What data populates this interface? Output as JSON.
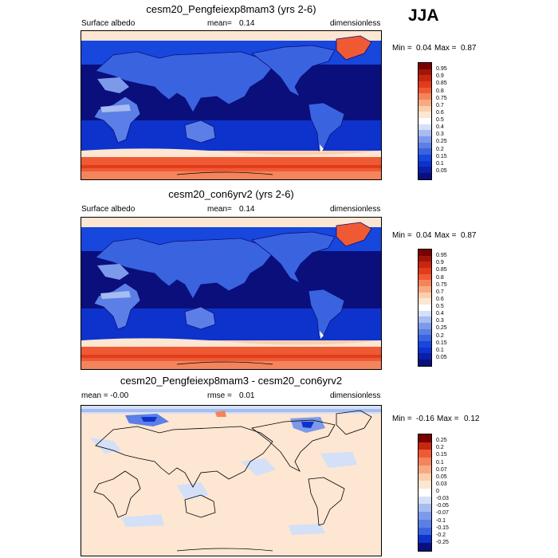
{
  "season": "JJA",
  "colors": {
    "seq": [
      "#0a0f7c",
      "#0a1faa",
      "#0d33cc",
      "#1747dc",
      "#3a63e0",
      "#5b7fe6",
      "#7d9aea",
      "#a7bcf0",
      "#d3e0f8",
      "#ffffff",
      "#fde6d2",
      "#fbcfae",
      "#f7aa82",
      "#f3845c",
      "#ef5a35",
      "#e13c1b",
      "#c72610",
      "#a0150a",
      "#7a0000"
    ],
    "diff": [
      "#0a0f7c",
      "#0d33cc",
      "#3a63e0",
      "#5b7fe6",
      "#7d9aea",
      "#a7bcf0",
      "#d3e0f8",
      "#ffffff",
      "#fde6d2",
      "#fbcfae",
      "#f7aa82",
      "#f3845c",
      "#ef5a35",
      "#c72610",
      "#7a0000"
    ]
  },
  "panels": [
    {
      "title": "cesm20_Pengfeiexp8mam3 (yrs 2-6)",
      "left_label": "Surface albedo",
      "mean_label": "mean=",
      "mean_value": "0.14",
      "units": "dimensionless",
      "min_label": "Min =",
      "min_value": "0.04",
      "max_label": "Max =",
      "max_value": "0.87",
      "levels": [
        "0.95",
        "0.9",
        "0.85",
        "0.8",
        "0.75",
        "0.7",
        "0.6",
        "0.5",
        "0.4",
        "0.3",
        "0.25",
        "0.2",
        "0.15",
        "0.1",
        "0.05"
      ]
    },
    {
      "title": "cesm20_con6yrv2 (yrs 2-6)",
      "left_label": "Surface albedo",
      "mean_label": "mean=",
      "mean_value": "0.14",
      "units": "dimensionless",
      "min_label": "Min =",
      "min_value": "0.04",
      "max_label": "Max =",
      "max_value": "0.87",
      "levels": [
        "0.95",
        "0.9",
        "0.85",
        "0.8",
        "0.75",
        "0.7",
        "0.6",
        "0.5",
        "0.4",
        "0.3",
        "0.25",
        "0.2",
        "0.15",
        "0.1",
        "0.05"
      ]
    },
    {
      "title": "cesm20_Pengfeiexp8mam3 - cesm20_con6yrv2",
      "left_label": "mean = -0.00",
      "mean_label": "rmse =",
      "mean_value": "0.01",
      "units": "dimensionless",
      "min_label": "Min =",
      "min_value": "-0.16",
      "max_label": "Max =",
      "max_value": "0.12",
      "levels": [
        "0.25",
        "0.2",
        "0.15",
        "0.1",
        "0.07",
        "0.05",
        "0.03",
        "0",
        "-0.03",
        "-0.05",
        "-0.07",
        "-0.1",
        "-0.15",
        "-0.2",
        "-0.25"
      ]
    }
  ]
}
